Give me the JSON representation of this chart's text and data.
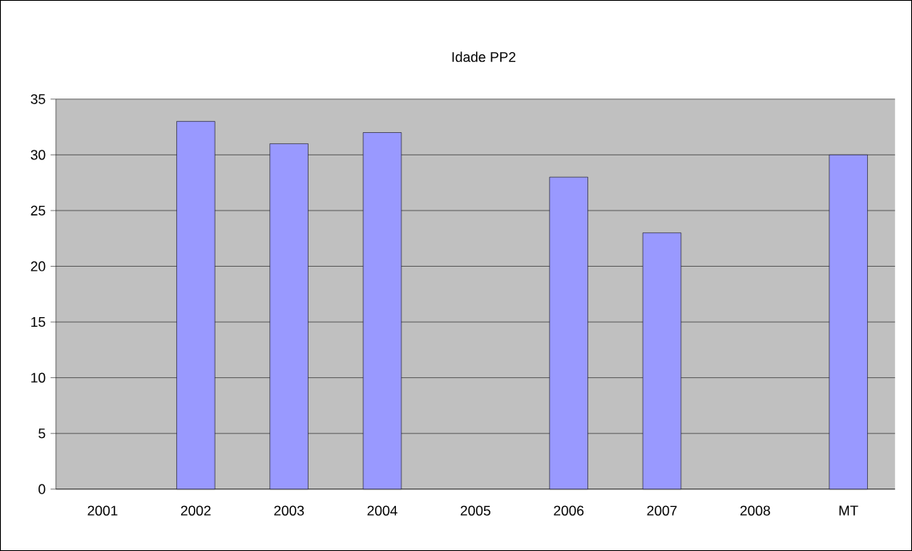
{
  "chart_data": {
    "type": "bar",
    "title": "Idade PP2",
    "categories": [
      "2001",
      "2002",
      "2003",
      "2004",
      "2005",
      "2006",
      "2007",
      "2008",
      "MT"
    ],
    "values": [
      null,
      33,
      31,
      32,
      null,
      28,
      23,
      null,
      30
    ],
    "color": "#9999ff",
    "ylim": [
      0,
      35
    ],
    "yticks": [
      0,
      5,
      10,
      15,
      20,
      25,
      30,
      35
    ],
    "grid": "y"
  }
}
